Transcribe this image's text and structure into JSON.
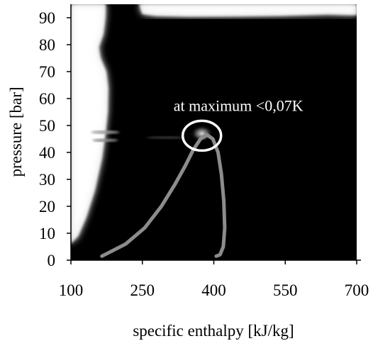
{
  "chart_data": {
    "type": "heatmap",
    "title": "",
    "xlabel": "specific enthalpy [kJ/kg]",
    "ylabel": "pressure [bar]",
    "x_ticks": [
      100,
      250,
      400,
      550,
      700
    ],
    "x_tick_labels": [
      "100",
      "250",
      "400",
      "550",
      "700"
    ],
    "xlim": [
      100,
      700
    ],
    "y_ticks": [
      0,
      10,
      20,
      30,
      40,
      50,
      60,
      70,
      80,
      90
    ],
    "ylim": [
      0,
      95
    ],
    "grid": false,
    "legend": "none",
    "colors": {
      "background": "#000000",
      "high_error_band": "#ffffff",
      "saturation_dome": "#8c8c8c",
      "annotation": "#ffffff"
    },
    "annotation": {
      "text": "at maximum <0,07K",
      "x": 375,
      "y": 47
    },
    "saturation_dome": {
      "name": "",
      "points": [
        [
          165,
          1.5
        ],
        [
          215,
          6
        ],
        [
          255,
          12
        ],
        [
          290,
          20
        ],
        [
          318,
          28
        ],
        [
          340,
          35
        ],
        [
          357,
          41
        ],
        [
          372,
          45
        ],
        [
          386,
          46.5
        ],
        [
          398,
          45
        ],
        [
          409,
          40
        ],
        [
          416,
          32
        ],
        [
          421,
          22
        ],
        [
          423,
          12
        ],
        [
          420,
          5
        ],
        [
          413,
          2
        ],
        [
          405,
          1.5
        ]
      ]
    },
    "high_error_left_band": {
      "points": [
        [
          100,
          95
        ],
        [
          173,
          95
        ],
        [
          172,
          90
        ],
        [
          168,
          84
        ],
        [
          158,
          79
        ],
        [
          162,
          75
        ],
        [
          174,
          70
        ],
        [
          178,
          64
        ],
        [
          177,
          55
        ],
        [
          172,
          47
        ],
        [
          165,
          38
        ],
        [
          150,
          26
        ],
        [
          132,
          16
        ],
        [
          115,
          9
        ],
        [
          100,
          6
        ]
      ]
    },
    "high_error_top_band": {
      "points": [
        [
          243,
          95
        ],
        [
          700,
          95
        ],
        [
          700,
          91
        ],
        [
          640,
          91.3
        ],
        [
          540,
          90.8
        ],
        [
          450,
          90.6
        ],
        [
          350,
          90.5
        ],
        [
          280,
          90.7
        ],
        [
          250,
          91.4
        ]
      ]
    }
  }
}
